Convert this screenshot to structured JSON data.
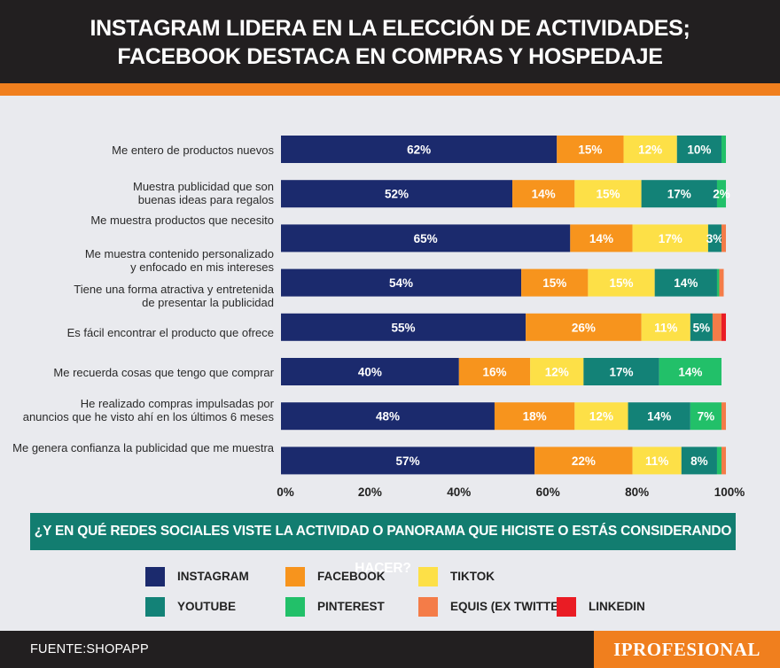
{
  "header": {
    "title_line1": "INSTAGRAM LIDERA EN LA ELECCIÓN DE ACTIVIDADES;",
    "title_line2": "FACEBOOK DESTACA EN COMPRAS Y HOSPEDAJE"
  },
  "chart_data": {
    "type": "bar",
    "orientation": "horizontal",
    "stacked": true,
    "categories": [
      [
        "Me entero de productos nuevos"
      ],
      [
        "Muestra publicidad que son",
        "buenas ideas para regalos"
      ],
      [
        "Me muestra productos que necesito"
      ],
      [
        "Me muestra contenido personalizado",
        "y enfocado en mis intereses"
      ],
      [
        "Tiene una forma atractiva y entretenida",
        "de presentar la publicidad"
      ],
      [
        "Es fácil encontrar el producto que ofrece"
      ],
      [
        "Me recuerda cosas que tengo que comprar"
      ],
      [
        "He realizado compras impulsadas por",
        "anuncios que he visto ahí en los últimos 6 meses"
      ],
      [
        "Me genera confianza la publicidad que me muestra"
      ]
    ],
    "bars": [
      {
        "category_indices": [
          0
        ],
        "values": [
          62,
          15,
          12,
          10,
          1,
          0,
          0
        ],
        "labels": [
          "62%",
          "15%",
          "12%",
          "10%",
          "",
          "",
          ""
        ]
      },
      {
        "category_indices": [
          1
        ],
        "values": [
          52,
          14,
          15,
          17,
          2,
          0,
          0
        ],
        "labels": [
          "52%",
          "14%",
          "15%",
          "17%",
          "2%",
          "",
          ""
        ]
      },
      {
        "category_indices": [
          2
        ],
        "values": [
          65,
          14,
          17,
          3,
          0,
          1,
          0
        ],
        "labels": [
          "65%",
          "14%",
          "17%",
          "3%",
          "",
          "",
          ""
        ]
      },
      {
        "category_indices": [
          3,
          4
        ],
        "values": [
          54,
          15,
          15,
          14,
          0.5,
          1,
          0
        ],
        "labels": [
          "54%",
          "15%",
          "15%",
          "14%",
          "",
          "",
          ""
        ]
      },
      {
        "category_indices": [
          5
        ],
        "values": [
          55,
          26,
          11,
          5,
          0,
          2,
          1
        ],
        "labels": [
          "55%",
          "26%",
          "11%",
          "5%",
          "",
          "",
          ""
        ]
      },
      {
        "category_indices": [
          6
        ],
        "values": [
          40,
          16,
          12,
          17,
          14,
          0,
          0
        ],
        "labels": [
          "40%",
          "16%",
          "12%",
          "17%",
          "14%",
          "",
          ""
        ]
      },
      {
        "category_indices": [
          7
        ],
        "values": [
          48,
          18,
          12,
          14,
          7,
          1,
          0
        ],
        "labels": [
          "48%",
          "18%",
          "12%",
          "14%",
          "7%",
          "",
          ""
        ]
      },
      {
        "category_indices": [
          8
        ],
        "values": [
          57,
          22,
          11,
          8,
          1,
          1,
          0
        ],
        "labels": [
          "57%",
          "22%",
          "11%",
          "8%",
          "",
          "",
          ""
        ]
      }
    ],
    "series": [
      {
        "name": "INSTAGRAM",
        "color": "#1b2a6d"
      },
      {
        "name": "FACEBOOK",
        "color": "#f7941d"
      },
      {
        "name": "TIKTOK",
        "color": "#fde047"
      },
      {
        "name": "YOUTUBE",
        "color": "#138277"
      },
      {
        "name": "PINTEREST",
        "color": "#22c069"
      },
      {
        "name": "EQUIS (EX TWITTER)",
        "color": "#f47c48"
      },
      {
        "name": "LINKEDIN",
        "color": "#ea1c24"
      }
    ],
    "x_ticks": [
      "0%",
      "20%",
      "40%",
      "60%",
      "80%",
      "100%"
    ],
    "xlim": [
      0,
      100
    ],
    "legend_position": "bottom"
  },
  "question": "¿Y EN QUÉ REDES SOCIALES VISTE LA ACTIVIDAD O PANORAMA QUE HICISTE O ESTÁS CONSIDERANDO HACER?",
  "legend": {
    "items": [
      {
        "label": "INSTAGRAM",
        "color": "#1b2a6d"
      },
      {
        "label": "FACEBOOK",
        "color": "#f7941d"
      },
      {
        "label": "TIKTOK",
        "color": "#fde047"
      },
      {
        "label": "YOUTUBE",
        "color": "#138277"
      },
      {
        "label": "PINTEREST",
        "color": "#22c069"
      },
      {
        "label": "EQUIS (EX TWITTER)",
        "color": "#f47c48"
      },
      {
        "label": "LINKEDIN",
        "color": "#ea1c24"
      }
    ]
  },
  "footer": {
    "source": "FUENTE:SHOPAPP",
    "brand": "IPROFESIONAL"
  }
}
